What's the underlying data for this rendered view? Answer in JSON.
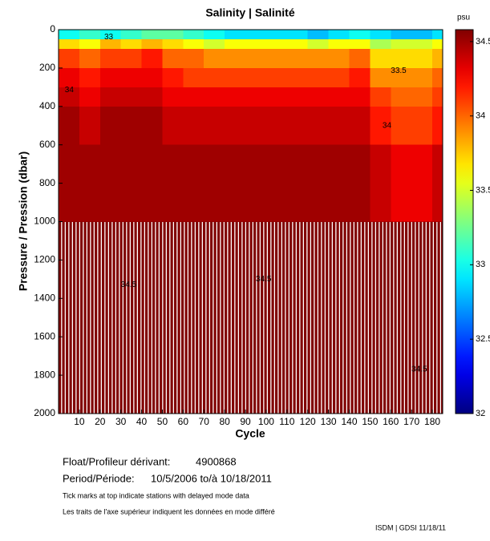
{
  "chart_data": {
    "type": "heatmap",
    "title": "Salinity | Salinité",
    "x_label": "Cycle",
    "y_label": "Pressure / Pression (dbar)",
    "colorbar_label": "psu",
    "bins": [
      0,
      10,
      20,
      30,
      40,
      50,
      60,
      70,
      80,
      90,
      100,
      110,
      120,
      130,
      140,
      150,
      160,
      170,
      180,
      185
    ],
    "depths": [
      0,
      50,
      100,
      200,
      300,
      400,
      600,
      1000,
      2000
    ],
    "values": [
      [
        33.0,
        33.1,
        33.0,
        33.1,
        33.2,
        33.2,
        33.1,
        33.0,
        32.9,
        32.9,
        32.9,
        32.9,
        32.8,
        32.9,
        33.0,
        32.9,
        32.8,
        32.8,
        32.9
      ],
      [
        33.7,
        33.6,
        33.8,
        33.7,
        33.8,
        33.7,
        33.6,
        33.5,
        33.6,
        33.6,
        33.6,
        33.6,
        33.5,
        33.6,
        33.6,
        33.4,
        33.5,
        33.5,
        33.6
      ],
      [
        34.1,
        34.0,
        34.1,
        34.1,
        34.2,
        34.0,
        34.0,
        33.9,
        33.9,
        33.9,
        33.9,
        33.9,
        33.9,
        33.9,
        34.0,
        33.7,
        33.7,
        33.7,
        33.8
      ],
      [
        34.3,
        34.2,
        34.3,
        34.3,
        34.3,
        34.2,
        34.1,
        34.1,
        34.1,
        34.1,
        34.1,
        34.1,
        34.1,
        34.1,
        34.2,
        33.9,
        33.9,
        33.9,
        34.0
      ],
      [
        34.4,
        34.3,
        34.4,
        34.4,
        34.4,
        34.3,
        34.3,
        34.3,
        34.3,
        34.3,
        34.3,
        34.3,
        34.3,
        34.3,
        34.3,
        34.1,
        34.0,
        34.0,
        34.1
      ],
      [
        34.5,
        34.4,
        34.5,
        34.5,
        34.5,
        34.4,
        34.4,
        34.4,
        34.4,
        34.4,
        34.4,
        34.4,
        34.4,
        34.4,
        34.4,
        34.2,
        34.1,
        34.1,
        34.2
      ],
      [
        34.5,
        34.5,
        34.5,
        34.5,
        34.5,
        34.5,
        34.5,
        34.5,
        34.5,
        34.5,
        34.5,
        34.5,
        34.5,
        34.5,
        34.5,
        34.4,
        34.3,
        34.3,
        34.4
      ],
      [
        34.6,
        34.6,
        34.6,
        34.6,
        34.6,
        34.6,
        34.6,
        34.6,
        34.6,
        34.6,
        34.6,
        34.6,
        34.6,
        34.6,
        34.6,
        34.6,
        34.6,
        34.6,
        34.6
      ]
    ],
    "contour_labels": [
      {
        "value": 34,
        "x": 3,
        "y": 315
      },
      {
        "value": 33,
        "x": 22,
        "y": 40
      },
      {
        "value": 33.5,
        "x": 160,
        "y": 215
      },
      {
        "value": 34,
        "x": 156,
        "y": 500
      },
      {
        "value": 34.5,
        "x": 30,
        "y": 1330
      },
      {
        "value": 34.5,
        "x": 95,
        "y": 1300
      },
      {
        "value": 34.5,
        "x": 170,
        "y": 1770
      }
    ],
    "xlim": [
      0,
      185
    ],
    "xticks": [
      10,
      20,
      30,
      40,
      50,
      60,
      70,
      80,
      90,
      100,
      110,
      120,
      130,
      140,
      150,
      160,
      170,
      180
    ],
    "ylim": [
      0,
      2000
    ],
    "yticks": [
      0,
      200,
      400,
      600,
      800,
      1000,
      1200,
      1400,
      1600,
      1800,
      2000
    ],
    "clim": [
      32,
      34.58
    ],
    "cticks": [
      32,
      32.5,
      33,
      33.5,
      34,
      34.5
    ],
    "info": {
      "float_label": "Float/Profileur dérivant:",
      "float_id": "4900868",
      "period_label": "Period/Période:",
      "period": "10/5/2006  to/à  10/18/2011",
      "note_en": "Tick marks at top indicate stations with delayed mode data",
      "note_fr": "Les traits de l'axe supérieur indiquent les données en mode différé",
      "credit": "ISDM | GDSI  11/18/11"
    }
  }
}
